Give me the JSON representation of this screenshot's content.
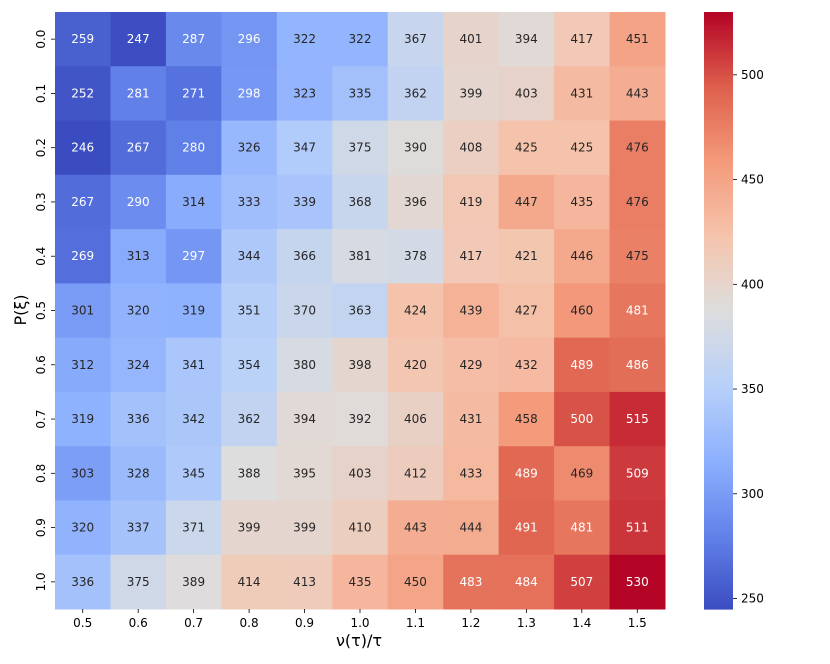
{
  "chart_data": {
    "type": "heatmap",
    "title": "",
    "xlabel": "ν(τ)/τ",
    "ylabel": "P(ξ)",
    "x_categories": [
      "0.5",
      "0.6",
      "0.7",
      "0.8",
      "0.9",
      "1.0",
      "1.1",
      "1.2",
      "1.3",
      "1.4",
      "1.5"
    ],
    "y_categories": [
      "0.0",
      "0.1",
      "0.2",
      "0.3",
      "0.4",
      "0.5",
      "0.6",
      "0.7",
      "0.8",
      "0.9",
      "1.0"
    ],
    "values": [
      [
        259,
        247,
        287,
        296,
        322,
        322,
        367,
        401,
        394,
        417,
        451
      ],
      [
        252,
        281,
        271,
        298,
        323,
        335,
        362,
        399,
        403,
        431,
        443
      ],
      [
        246,
        267,
        280,
        326,
        347,
        375,
        390,
        408,
        425,
        425,
        476
      ],
      [
        267,
        290,
        314,
        333,
        339,
        368,
        396,
        419,
        447,
        435,
        476
      ],
      [
        269,
        313,
        297,
        344,
        366,
        381,
        378,
        417,
        421,
        446,
        475
      ],
      [
        301,
        320,
        319,
        351,
        370,
        363,
        424,
        439,
        427,
        460,
        481
      ],
      [
        312,
        324,
        341,
        354,
        380,
        398,
        420,
        429,
        432,
        489,
        486
      ],
      [
        319,
        336,
        342,
        362,
        394,
        392,
        406,
        431,
        458,
        500,
        515
      ],
      [
        303,
        328,
        345,
        388,
        395,
        403,
        412,
        433,
        489,
        469,
        509
      ],
      [
        320,
        337,
        371,
        399,
        399,
        410,
        443,
        444,
        491,
        481,
        511
      ],
      [
        336,
        375,
        389,
        414,
        413,
        435,
        450,
        483,
        484,
        507,
        530
      ]
    ],
    "colormap": "coolwarm",
    "vmin": 246,
    "vmax": 530,
    "colorbar": {
      "ticks": [
        250,
        300,
        350,
        400,
        450,
        500
      ]
    }
  }
}
